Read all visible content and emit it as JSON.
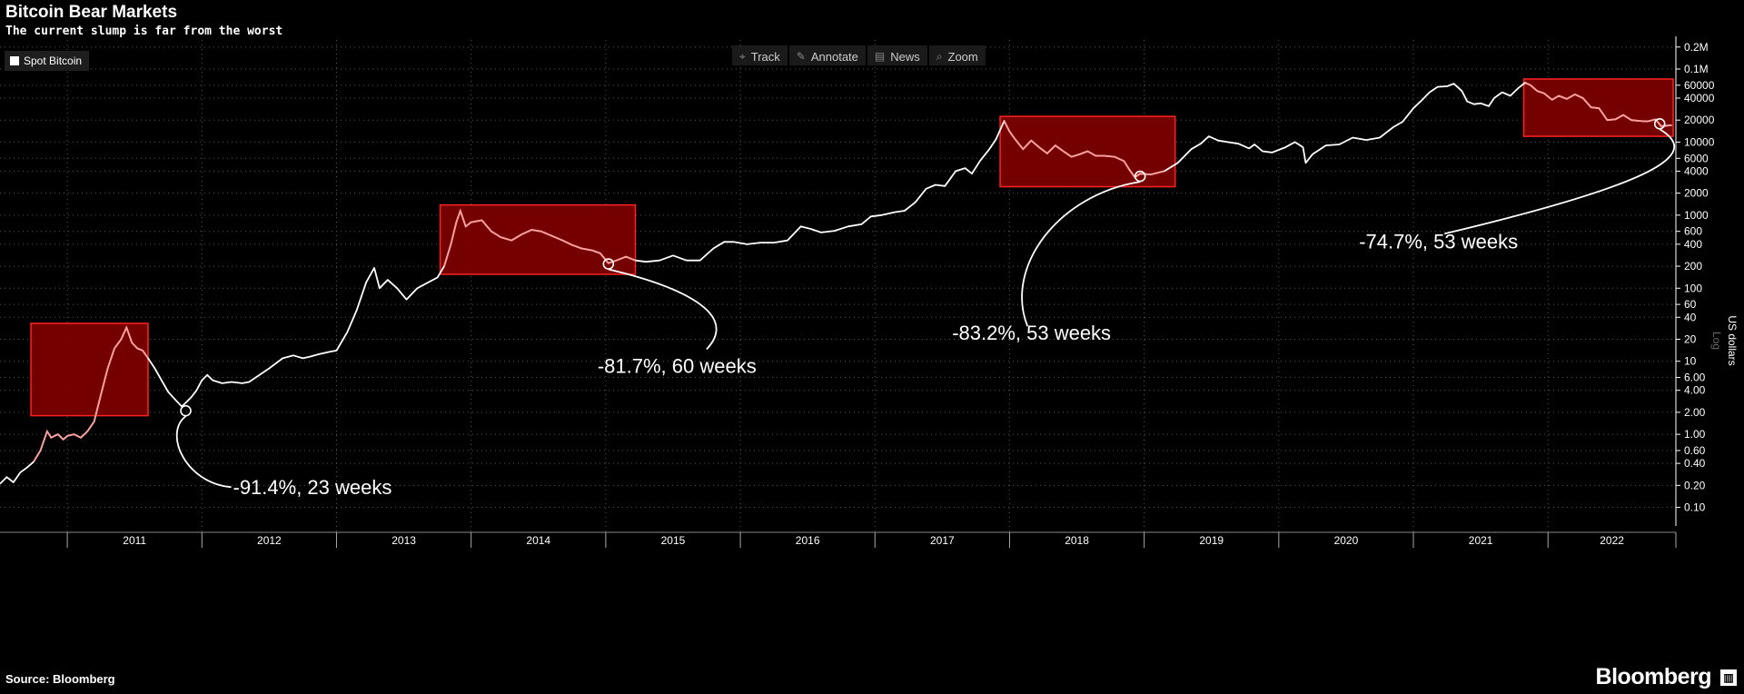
{
  "header": {
    "title": "Bitcoin Bear Markets",
    "subtitle": "The current slump is far from the worst"
  },
  "legend": {
    "label": "Spot Bitcoin",
    "color": "#ffffff"
  },
  "toolbar": [
    {
      "label": "Track",
      "icon": "crosshair-icon",
      "glyph": "⌖"
    },
    {
      "label": "Annotate",
      "icon": "pencil-icon",
      "glyph": "✎"
    },
    {
      "label": "News",
      "icon": "news-icon",
      "glyph": "▤"
    },
    {
      "label": "Zoom",
      "icon": "magnifier-icon",
      "glyph": "⌕"
    }
  ],
  "footer": {
    "source": "Source: Bloomberg",
    "brand": "Bloomberg",
    "brand_icon_glyph": "▥"
  },
  "colors": {
    "background": "#000000",
    "line": "#ffffff",
    "bear_box_fill": "#7a0000",
    "bear_box_stroke": "#ff2222",
    "bear_line": "#ff9c9c"
  },
  "chart_data": {
    "type": "line",
    "title": "Bitcoin Bear Markets",
    "subtitle": "The current slump is far from the worst",
    "ylabel": "US dollars",
    "y_scale_label": "Log",
    "y_scale": "log",
    "ylim": [
      0.07,
      250000
    ],
    "xlim": [
      2010.5,
      2022.95
    ],
    "grid": true,
    "legend_position": "top-left",
    "x_ticks": [
      "2011",
      "2012",
      "2013",
      "2014",
      "2015",
      "2016",
      "2017",
      "2018",
      "2019",
      "2020",
      "2021",
      "2022"
    ],
    "y_ticks": [
      {
        "value": 200000,
        "label": "0.2M"
      },
      {
        "value": 100000,
        "label": "0.1M"
      },
      {
        "value": 60000,
        "label": "60000"
      },
      {
        "value": 40000,
        "label": "40000"
      },
      {
        "value": 20000,
        "label": "20000"
      },
      {
        "value": 10000,
        "label": "10000"
      },
      {
        "value": 6000,
        "label": "6000"
      },
      {
        "value": 4000,
        "label": "4000"
      },
      {
        "value": 2000,
        "label": "2000"
      },
      {
        "value": 1000,
        "label": "1000"
      },
      {
        "value": 600,
        "label": "600"
      },
      {
        "value": 400,
        "label": "400"
      },
      {
        "value": 200,
        "label": "200"
      },
      {
        "value": 100,
        "label": "100"
      },
      {
        "value": 60,
        "label": "60"
      },
      {
        "value": 40,
        "label": "40"
      },
      {
        "value": 20,
        "label": "20"
      },
      {
        "value": 10,
        "label": "10"
      },
      {
        "value": 6,
        "label": "6.00"
      },
      {
        "value": 4,
        "label": "4.00"
      },
      {
        "value": 2,
        "label": "2.00"
      },
      {
        "value": 1,
        "label": "1.00"
      },
      {
        "value": 0.6,
        "label": "0.60"
      },
      {
        "value": 0.4,
        "label": "0.40"
      },
      {
        "value": 0.2,
        "label": "0.20"
      },
      {
        "value": 0.1,
        "label": "0.10"
      }
    ],
    "series": [
      {
        "name": "Spot Bitcoin",
        "points": [
          [
            2010.5,
            0.21
          ],
          [
            2010.55,
            0.26
          ],
          [
            2010.6,
            0.22
          ],
          [
            2010.65,
            0.3
          ],
          [
            2010.7,
            0.35
          ],
          [
            2010.75,
            0.42
          ],
          [
            2010.8,
            0.6
          ],
          [
            2010.85,
            1.1
          ],
          [
            2010.88,
            0.9
          ],
          [
            2010.93,
            1.0
          ],
          [
            2010.97,
            0.85
          ],
          [
            2011.0,
            0.95
          ],
          [
            2011.05,
            1.0
          ],
          [
            2011.1,
            0.9
          ],
          [
            2011.15,
            1.1
          ],
          [
            2011.2,
            1.5
          ],
          [
            2011.25,
            3.5
          ],
          [
            2011.3,
            8.0
          ],
          [
            2011.35,
            15.0
          ],
          [
            2011.4,
            20.0
          ],
          [
            2011.44,
            29.0
          ],
          [
            2011.48,
            18.0
          ],
          [
            2011.52,
            15.0
          ],
          [
            2011.56,
            14.0
          ],
          [
            2011.6,
            11.0
          ],
          [
            2011.65,
            8.0
          ],
          [
            2011.7,
            5.5
          ],
          [
            2011.75,
            3.8
          ],
          [
            2011.8,
            3.0
          ],
          [
            2011.85,
            2.4
          ],
          [
            2011.88,
            2.7
          ],
          [
            2011.92,
            3.2
          ],
          [
            2011.96,
            4.0
          ],
          [
            2012.0,
            5.5
          ],
          [
            2012.04,
            6.5
          ],
          [
            2012.08,
            5.5
          ],
          [
            2012.15,
            5.0
          ],
          [
            2012.22,
            5.2
          ],
          [
            2012.3,
            5.0
          ],
          [
            2012.35,
            5.2
          ],
          [
            2012.4,
            6.0
          ],
          [
            2012.5,
            8.0
          ],
          [
            2012.6,
            11.0
          ],
          [
            2012.68,
            12.0
          ],
          [
            2012.75,
            11.0
          ],
          [
            2012.8,
            11.5
          ],
          [
            2012.87,
            12.5
          ],
          [
            2012.95,
            13.5
          ],
          [
            2013.0,
            14.0
          ],
          [
            2013.08,
            25.0
          ],
          [
            2013.15,
            50.0
          ],
          [
            2013.22,
            120.0
          ],
          [
            2013.28,
            190.0
          ],
          [
            2013.32,
            100.0
          ],
          [
            2013.38,
            130.0
          ],
          [
            2013.45,
            100.0
          ],
          [
            2013.52,
            70.0
          ],
          [
            2013.6,
            100.0
          ],
          [
            2013.68,
            120.0
          ],
          [
            2013.75,
            140.0
          ],
          [
            2013.8,
            200.0
          ],
          [
            2013.85,
            400.0
          ],
          [
            2013.89,
            800.0
          ],
          [
            2013.92,
            1150.0
          ],
          [
            2013.96,
            700.0
          ],
          [
            2014.0,
            800.0
          ],
          [
            2014.08,
            850.0
          ],
          [
            2014.15,
            600.0
          ],
          [
            2014.22,
            500.0
          ],
          [
            2014.3,
            450.0
          ],
          [
            2014.38,
            550.0
          ],
          [
            2014.45,
            630.0
          ],
          [
            2014.52,
            600.0
          ],
          [
            2014.6,
            520.0
          ],
          [
            2014.68,
            450.0
          ],
          [
            2014.75,
            390.0
          ],
          [
            2014.82,
            350.0
          ],
          [
            2014.9,
            330.0
          ],
          [
            2014.96,
            300.0
          ],
          [
            2015.02,
            220.0
          ],
          [
            2015.08,
            240.0
          ],
          [
            2015.15,
            270.0
          ],
          [
            2015.22,
            240.0
          ],
          [
            2015.3,
            230.0
          ],
          [
            2015.4,
            240.0
          ],
          [
            2015.5,
            280.0
          ],
          [
            2015.6,
            240.0
          ],
          [
            2015.7,
            240.0
          ],
          [
            2015.8,
            350.0
          ],
          [
            2015.88,
            430.0
          ],
          [
            2015.95,
            430.0
          ],
          [
            2016.05,
            400.0
          ],
          [
            2016.15,
            420.0
          ],
          [
            2016.25,
            420.0
          ],
          [
            2016.35,
            450.0
          ],
          [
            2016.45,
            700.0
          ],
          [
            2016.52,
            650.0
          ],
          [
            2016.6,
            580.0
          ],
          [
            2016.7,
            610.0
          ],
          [
            2016.8,
            700.0
          ],
          [
            2016.9,
            750.0
          ],
          [
            2016.97,
            960.0
          ],
          [
            2017.05,
            1000.0
          ],
          [
            2017.15,
            1100.0
          ],
          [
            2017.22,
            1150.0
          ],
          [
            2017.3,
            1500.0
          ],
          [
            2017.38,
            2300.0
          ],
          [
            2017.45,
            2600.0
          ],
          [
            2017.52,
            2500.0
          ],
          [
            2017.6,
            4000.0
          ],
          [
            2017.67,
            4400.0
          ],
          [
            2017.72,
            3700.0
          ],
          [
            2017.78,
            5500.0
          ],
          [
            2017.85,
            8000.0
          ],
          [
            2017.9,
            11000.0
          ],
          [
            2017.96,
            19500.0
          ],
          [
            2018.0,
            14000.0
          ],
          [
            2018.04,
            11000.0
          ],
          [
            2018.1,
            8000.0
          ],
          [
            2018.16,
            10500.0
          ],
          [
            2018.22,
            8500.0
          ],
          [
            2018.28,
            7000.0
          ],
          [
            2018.34,
            9000.0
          ],
          [
            2018.4,
            7500.0
          ],
          [
            2018.46,
            6300.0
          ],
          [
            2018.52,
            6800.0
          ],
          [
            2018.58,
            7500.0
          ],
          [
            2018.64,
            6500.0
          ],
          [
            2018.7,
            6500.0
          ],
          [
            2018.78,
            6300.0
          ],
          [
            2018.85,
            5500.0
          ],
          [
            2018.89,
            4200.0
          ],
          [
            2018.93,
            3300.0
          ],
          [
            2018.97,
            3700.0
          ],
          [
            2019.05,
            3600.0
          ],
          [
            2019.15,
            4000.0
          ],
          [
            2019.25,
            5200.0
          ],
          [
            2019.35,
            8000.0
          ],
          [
            2019.42,
            9500.0
          ],
          [
            2019.48,
            12000.0
          ],
          [
            2019.55,
            10500.0
          ],
          [
            2019.62,
            10000.0
          ],
          [
            2019.7,
            9500.0
          ],
          [
            2019.78,
            8200.0
          ],
          [
            2019.82,
            9300.0
          ],
          [
            2019.88,
            7500.0
          ],
          [
            2019.95,
            7200.0
          ],
          [
            2020.05,
            8500.0
          ],
          [
            2020.12,
            10000.0
          ],
          [
            2020.18,
            8500.0
          ],
          [
            2020.2,
            5200.0
          ],
          [
            2020.25,
            6800.0
          ],
          [
            2020.35,
            9000.0
          ],
          [
            2020.45,
            9300.0
          ],
          [
            2020.55,
            11500.0
          ],
          [
            2020.65,
            10700.0
          ],
          [
            2020.75,
            11500.0
          ],
          [
            2020.85,
            16000.0
          ],
          [
            2020.92,
            19000.0
          ],
          [
            2021.0,
            29000.0
          ],
          [
            2021.06,
            37000.0
          ],
          [
            2021.12,
            48000.0
          ],
          [
            2021.18,
            57000.0
          ],
          [
            2021.25,
            58000.0
          ],
          [
            2021.3,
            63000.0
          ],
          [
            2021.36,
            50000.0
          ],
          [
            2021.4,
            36000.0
          ],
          [
            2021.45,
            33000.0
          ],
          [
            2021.5,
            34000.0
          ],
          [
            2021.56,
            31000.0
          ],
          [
            2021.6,
            40000.0
          ],
          [
            2021.66,
            48000.0
          ],
          [
            2021.72,
            43000.0
          ],
          [
            2021.78,
            55000.0
          ],
          [
            2021.83,
            65000.0
          ],
          [
            2021.87,
            60000.0
          ],
          [
            2021.92,
            50000.0
          ],
          [
            2021.97,
            46500.0
          ],
          [
            2022.03,
            38000.0
          ],
          [
            2022.08,
            43000.0
          ],
          [
            2022.14,
            39000.0
          ],
          [
            2022.2,
            45000.0
          ],
          [
            2022.26,
            40000.0
          ],
          [
            2022.32,
            30000.0
          ],
          [
            2022.38,
            29000.0
          ],
          [
            2022.44,
            20000.0
          ],
          [
            2022.5,
            20500.0
          ],
          [
            2022.56,
            23500.0
          ],
          [
            2022.62,
            20000.0
          ],
          [
            2022.68,
            19500.0
          ],
          [
            2022.74,
            19200.0
          ],
          [
            2022.8,
            20500.0
          ],
          [
            2022.84,
            16500.0
          ],
          [
            2022.88,
            16800.0
          ],
          [
            2022.92,
            17000.0
          ]
        ]
      }
    ],
    "bear_markets": [
      {
        "x0": 2010.73,
        "x1": 2011.6,
        "y0": 1.8,
        "y1": 33,
        "trough": [
          2011.88,
          2.1
        ],
        "label": "-91.4%, 23 weeks"
      },
      {
        "x0": 2013.77,
        "x1": 2015.22,
        "y0": 155,
        "y1": 1380,
        "trough": [
          2015.02,
          215
        ],
        "label": "-81.7%, 60 weeks"
      },
      {
        "x0": 2017.93,
        "x1": 2019.23,
        "y0": 2450,
        "y1": 22500,
        "trough": [
          2018.97,
          3400
        ],
        "label": "-83.2%, 53 weeks"
      },
      {
        "x0": 2021.82,
        "x1": 2022.93,
        "y0": 12000,
        "y1": 73000,
        "trough": [
          2022.83,
          17800
        ],
        "label": "-74.7%, 53 weeks"
      }
    ]
  }
}
